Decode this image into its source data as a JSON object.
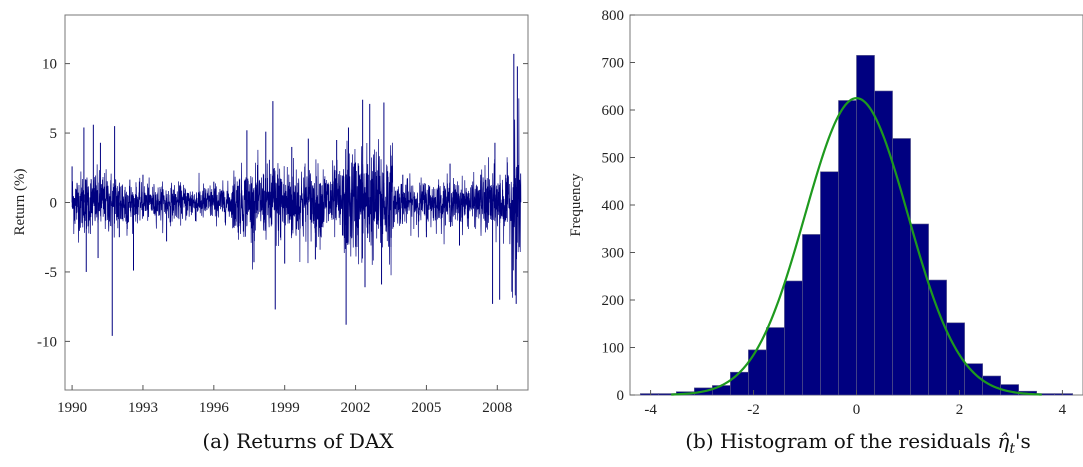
{
  "chart_data": [
    {
      "type": "line",
      "caption": "(a) Returns of DAX",
      "xlabel": "",
      "ylabel": "Return (%)",
      "x_ticks": [
        "1990",
        "1993",
        "1996",
        "1999",
        "2002",
        "2005",
        "2008"
      ],
      "y_ticks": [
        "10",
        "5",
        "0",
        "-5",
        "-10"
      ],
      "xlim": [
        1989.7,
        2009.3
      ],
      "ylim": [
        -13.5,
        13.5
      ],
      "series": [
        {
          "color": "#000080",
          "points": [
            {
              "x": 1990.0,
              "y": 2.6
            },
            {
              "x": 1990.5,
              "y": 5.4
            },
            {
              "x": 1990.6,
              "y": -5.0
            },
            {
              "x": 1990.9,
              "y": 5.6
            },
            {
              "x": 1991.1,
              "y": -4.0
            },
            {
              "x": 1991.2,
              "y": 4.3
            },
            {
              "x": 1991.7,
              "y": -9.6
            },
            {
              "x": 1991.8,
              "y": 5.5
            },
            {
              "x": 1992.0,
              "y": -2.5
            },
            {
              "x": 1992.6,
              "y": -4.9
            },
            {
              "x": 1993.0,
              "y": 2.0
            },
            {
              "x": 1994.0,
              "y": -2.8
            },
            {
              "x": 1996.0,
              "y": 1.5
            },
            {
              "x": 1997.4,
              "y": 5.2
            },
            {
              "x": 1997.7,
              "y": -4.3
            },
            {
              "x": 1998.2,
              "y": 5.1
            },
            {
              "x": 1998.5,
              "y": 7.3
            },
            {
              "x": 1998.6,
              "y": -7.7
            },
            {
              "x": 1999.0,
              "y": -4.4
            },
            {
              "x": 1999.3,
              "y": 4.0
            },
            {
              "x": 2000.0,
              "y": 4.6
            },
            {
              "x": 2000.3,
              "y": -4.1
            },
            {
              "x": 2001.2,
              "y": 4.5
            },
            {
              "x": 2001.6,
              "y": -8.8
            },
            {
              "x": 2001.7,
              "y": 5.4
            },
            {
              "x": 2002.3,
              "y": 7.4
            },
            {
              "x": 2002.4,
              "y": -6.1
            },
            {
              "x": 2002.6,
              "y": 7.1
            },
            {
              "x": 2003.1,
              "y": -5.9
            },
            {
              "x": 2003.2,
              "y": 7.2
            },
            {
              "x": 2003.5,
              "y": -3.2
            },
            {
              "x": 2004.0,
              "y": 2.0
            },
            {
              "x": 2005.0,
              "y": -2.5
            },
            {
              "x": 2006.0,
              "y": 2.8
            },
            {
              "x": 2006.4,
              "y": -3.1
            },
            {
              "x": 2007.3,
              "y": 2.0
            },
            {
              "x": 2007.8,
              "y": -7.3
            },
            {
              "x": 2007.9,
              "y": 4.3
            },
            {
              "x": 2008.1,
              "y": -7.0
            },
            {
              "x": 2008.7,
              "y": 10.7
            },
            {
              "x": 2008.8,
              "y": -7.3
            },
            {
              "x": 2008.85,
              "y": 9.8
            }
          ]
        }
      ]
    },
    {
      "type": "bar",
      "caption": "(b) Histogram of the residuals η̂t's",
      "caption_parts": {
        "text": "(b) Histogram of the residuals ",
        "symbol": "η̂",
        "subscript": "t",
        "suffix": "'s"
      },
      "xlabel": "",
      "ylabel": "Frequency",
      "x_ticks": [
        "-4",
        "-2",
        "0",
        "2",
        "4"
      ],
      "y_ticks": [
        "800",
        "700",
        "600",
        "500",
        "400",
        "300",
        "200",
        "100",
        "0"
      ],
      "xlim": [
        -4.4,
        4.4
      ],
      "ylim": [
        0,
        800
      ],
      "bin_width": 0.35,
      "bin_centers": [
        -4.025,
        -3.675,
        -3.325,
        -2.975,
        -2.625,
        -2.275,
        -1.925,
        -1.575,
        -1.225,
        -0.875,
        -0.525,
        -0.175,
        0.175,
        0.525,
        0.875,
        1.225,
        1.575,
        1.925,
        2.275,
        2.625,
        2.975,
        3.325,
        3.675,
        4.025
      ],
      "values": [
        3,
        3,
        7,
        15,
        20,
        48,
        95,
        142,
        240,
        338,
        470,
        620,
        715,
        640,
        540,
        360,
        242,
        152,
        66,
        40,
        22,
        8,
        3,
        3
      ],
      "bar_color": "#000080",
      "curve": {
        "type": "normal",
        "mean": 0,
        "sd": 1,
        "peak": 625,
        "color": "#1e9a1e"
      }
    }
  ]
}
